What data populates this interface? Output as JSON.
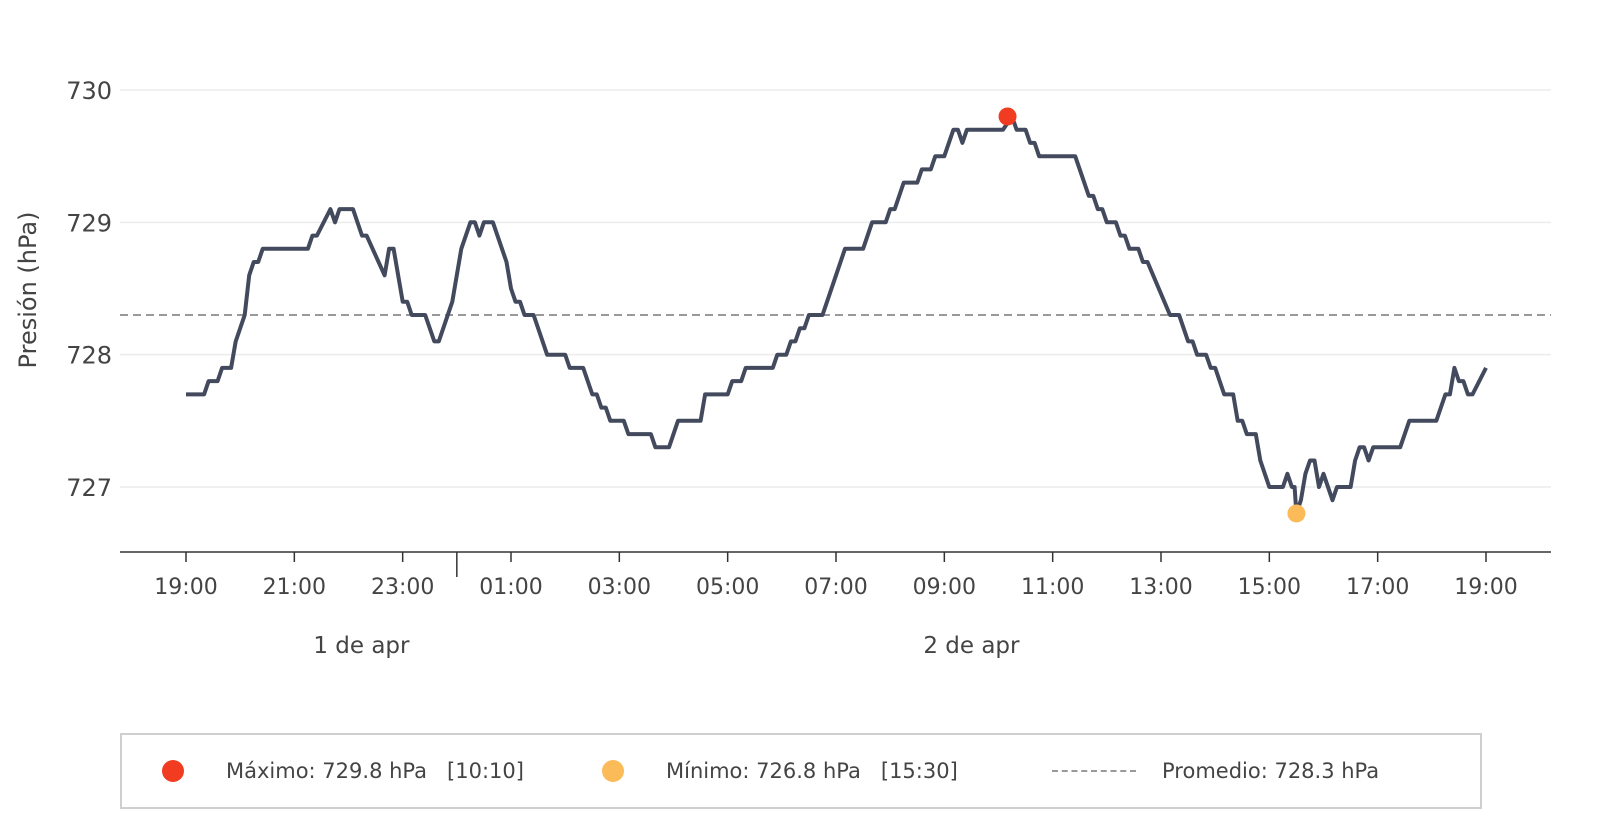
{
  "chart_data": {
    "type": "line",
    "ylabel": "Presión (hPa)",
    "ylim": [
      726.5,
      730.2
    ],
    "yticks": [
      727,
      728,
      729,
      730
    ],
    "x_start": "2024-04-01T19:00",
    "x_end": "2024-04-02T19:00",
    "xticks": [
      "19:00",
      "21:00",
      "23:00",
      "01:00",
      "03:00",
      "05:00",
      "07:00",
      "09:00",
      "11:00",
      "13:00",
      "15:00",
      "17:00",
      "19:00"
    ],
    "day_labels": [
      {
        "label": "1 de apr"
      },
      {
        "label": "2 de apr"
      }
    ],
    "series": [
      {
        "color": "#434a5e",
        "points": [
          [
            "19:00",
            727.7
          ],
          [
            "19:20",
            727.7
          ],
          [
            "19:25",
            727.8
          ],
          [
            "19:35",
            727.8
          ],
          [
            "19:40",
            727.9
          ],
          [
            "19:50",
            727.9
          ],
          [
            "19:55",
            728.1
          ],
          [
            "20:05",
            728.3
          ],
          [
            "20:10",
            728.6
          ],
          [
            "20:15",
            728.7
          ],
          [
            "20:20",
            728.7
          ],
          [
            "20:25",
            728.8
          ],
          [
            "21:00",
            728.8
          ],
          [
            "21:15",
            728.8
          ],
          [
            "21:20",
            728.9
          ],
          [
            "21:25",
            728.9
          ],
          [
            "21:40",
            729.1
          ],
          [
            "21:45",
            729.0
          ],
          [
            "21:50",
            729.1
          ],
          [
            "22:05",
            729.1
          ],
          [
            "22:15",
            728.9
          ],
          [
            "22:20",
            728.9
          ],
          [
            "22:40",
            728.6
          ],
          [
            "22:45",
            728.8
          ],
          [
            "22:50",
            728.8
          ],
          [
            "23:00",
            728.4
          ],
          [
            "23:05",
            728.4
          ],
          [
            "23:10",
            728.3
          ],
          [
            "23:25",
            728.3
          ],
          [
            "23:35",
            728.1
          ],
          [
            "23:40",
            728.1
          ],
          [
            "23:55",
            728.4
          ],
          [
            "00:05",
            728.8
          ],
          [
            "00:15",
            729.0
          ],
          [
            "00:20",
            729.0
          ],
          [
            "00:25",
            728.9
          ],
          [
            "00:30",
            729.0
          ],
          [
            "00:40",
            729.0
          ],
          [
            "00:55",
            728.7
          ],
          [
            "01:00",
            728.5
          ],
          [
            "01:05",
            728.4
          ],
          [
            "01:10",
            728.4
          ],
          [
            "01:15",
            728.3
          ],
          [
            "01:25",
            728.3
          ],
          [
            "01:35",
            728.1
          ],
          [
            "01:40",
            728.0
          ],
          [
            "01:55",
            728.0
          ],
          [
            "02:00",
            728.0
          ],
          [
            "02:05",
            727.9
          ],
          [
            "02:20",
            727.9
          ],
          [
            "02:30",
            727.7
          ],
          [
            "02:35",
            727.7
          ],
          [
            "02:40",
            727.6
          ],
          [
            "02:45",
            727.6
          ],
          [
            "02:50",
            727.5
          ],
          [
            "03:05",
            727.5
          ],
          [
            "03:10",
            727.4
          ],
          [
            "03:35",
            727.4
          ],
          [
            "03:40",
            727.3
          ],
          [
            "03:55",
            727.3
          ],
          [
            "04:05",
            727.5
          ],
          [
            "04:30",
            727.5
          ],
          [
            "04:35",
            727.7
          ],
          [
            "05:00",
            727.7
          ],
          [
            "05:05",
            727.8
          ],
          [
            "05:15",
            727.8
          ],
          [
            "05:20",
            727.9
          ],
          [
            "05:50",
            727.9
          ],
          [
            "05:55",
            728.0
          ],
          [
            "06:05",
            728.0
          ],
          [
            "06:10",
            728.1
          ],
          [
            "06:15",
            728.1
          ],
          [
            "06:20",
            728.2
          ],
          [
            "06:25",
            728.2
          ],
          [
            "06:30",
            728.3
          ],
          [
            "06:45",
            728.3
          ],
          [
            "07:00",
            728.6
          ],
          [
            "07:10",
            728.8
          ],
          [
            "07:30",
            728.8
          ],
          [
            "07:40",
            729.0
          ],
          [
            "07:55",
            729.0
          ],
          [
            "08:00",
            729.1
          ],
          [
            "08:05",
            729.1
          ],
          [
            "08:15",
            729.3
          ],
          [
            "08:30",
            729.3
          ],
          [
            "08:35",
            729.4
          ],
          [
            "08:45",
            729.4
          ],
          [
            "08:50",
            729.5
          ],
          [
            "09:00",
            729.5
          ],
          [
            "09:10",
            729.7
          ],
          [
            "09:15",
            729.7
          ],
          [
            "09:20",
            729.6
          ],
          [
            "09:25",
            729.7
          ],
          [
            "09:55",
            729.7
          ],
          [
            "10:05",
            729.7
          ],
          [
            "10:15",
            729.8
          ],
          [
            "10:20",
            729.7
          ],
          [
            "10:30",
            729.7
          ],
          [
            "10:35",
            729.6
          ],
          [
            "10:40",
            729.6
          ],
          [
            "10:45",
            729.5
          ],
          [
            "11:00",
            729.5
          ],
          [
            "11:25",
            729.5
          ],
          [
            "11:40",
            729.2
          ],
          [
            "11:45",
            729.2
          ],
          [
            "11:50",
            729.1
          ],
          [
            "11:55",
            729.1
          ],
          [
            "12:00",
            729.0
          ],
          [
            "12:10",
            729.0
          ],
          [
            "12:15",
            728.9
          ],
          [
            "12:20",
            728.9
          ],
          [
            "12:25",
            728.8
          ],
          [
            "12:35",
            728.8
          ],
          [
            "12:40",
            728.7
          ],
          [
            "12:45",
            728.7
          ],
          [
            "13:10",
            728.3
          ],
          [
            "13:20",
            728.3
          ],
          [
            "13:25",
            728.2
          ],
          [
            "13:30",
            728.1
          ],
          [
            "13:35",
            728.1
          ],
          [
            "13:40",
            728.0
          ],
          [
            "13:50",
            728.0
          ],
          [
            "13:55",
            727.9
          ],
          [
            "14:00",
            727.9
          ],
          [
            "14:10",
            727.7
          ],
          [
            "14:20",
            727.7
          ],
          [
            "14:25",
            727.5
          ],
          [
            "14:30",
            727.5
          ],
          [
            "14:35",
            727.4
          ],
          [
            "14:45",
            727.4
          ],
          [
            "14:50",
            727.2
          ],
          [
            "15:00",
            727.0
          ],
          [
            "15:15",
            727.0
          ],
          [
            "15:20",
            727.1
          ],
          [
            "15:25",
            727.0
          ],
          [
            "15:28",
            727.0
          ],
          [
            "15:30",
            726.8
          ],
          [
            "15:35",
            726.9
          ],
          [
            "15:40",
            727.1
          ],
          [
            "15:45",
            727.2
          ],
          [
            "15:50",
            727.2
          ],
          [
            "15:55",
            727.0
          ],
          [
            "16:00",
            727.1
          ],
          [
            "16:10",
            726.9
          ],
          [
            "16:15",
            727.0
          ],
          [
            "16:30",
            727.0
          ],
          [
            "16:35",
            727.2
          ],
          [
            "16:40",
            727.3
          ],
          [
            "16:45",
            727.3
          ],
          [
            "16:50",
            727.2
          ],
          [
            "16:55",
            727.3
          ],
          [
            "17:15",
            727.3
          ],
          [
            "17:25",
            727.3
          ],
          [
            "17:35",
            727.5
          ],
          [
            "17:50",
            727.5
          ],
          [
            "18:05",
            727.5
          ],
          [
            "18:15",
            727.7
          ],
          [
            "18:20",
            727.7
          ],
          [
            "18:25",
            727.9
          ],
          [
            "18:30",
            727.8
          ],
          [
            "18:35",
            727.8
          ],
          [
            "18:40",
            727.7
          ],
          [
            "18:45",
            727.7
          ],
          [
            "19:00",
            727.9
          ]
        ]
      }
    ],
    "max": {
      "time": "10:10",
      "value": 729.8,
      "color": "#f23c22"
    },
    "min": {
      "time": "15:30",
      "value": 726.8,
      "color": "#fbbb58"
    },
    "avg": {
      "value": 728.3,
      "color": "#999999"
    },
    "grid": true
  },
  "legend": {
    "max_label": "Máximo: 729.8 hPa   [10:10]",
    "min_label": "Mínimo: 726.8 hPa   [15:30]",
    "avg_label": "Promedio: 728.3 hPa"
  }
}
